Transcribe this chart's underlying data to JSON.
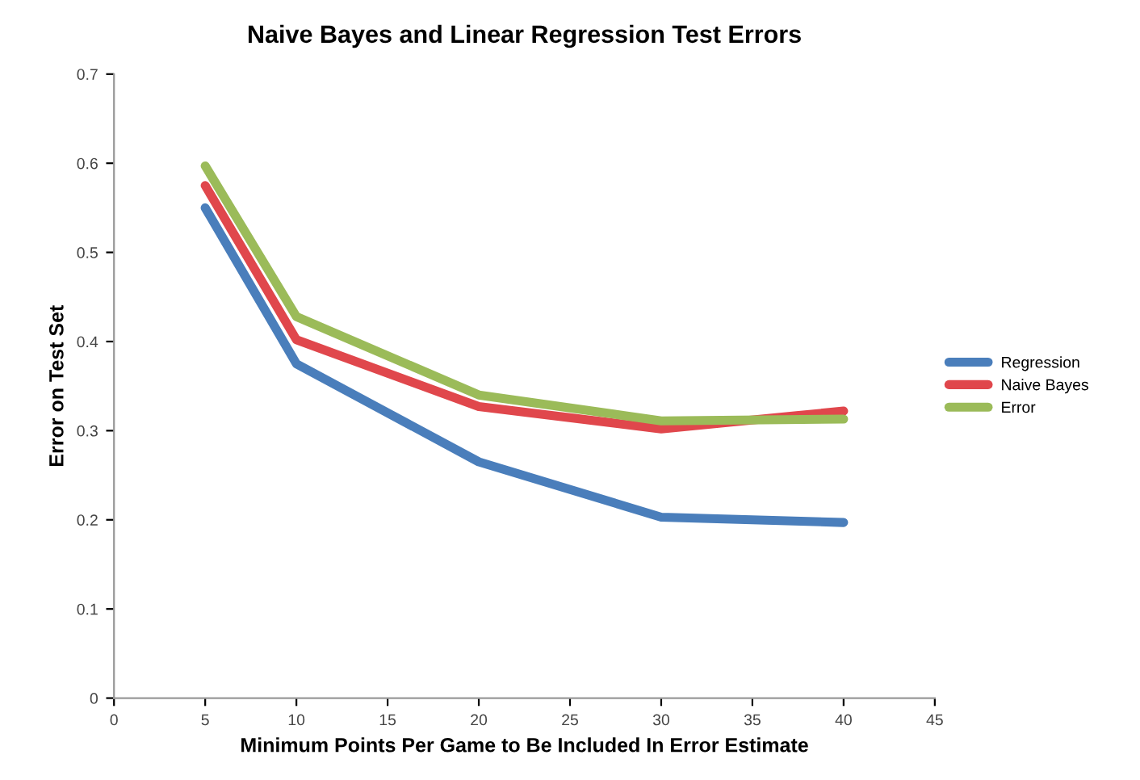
{
  "chart_data": {
    "type": "line",
    "title": "Naive Bayes and Linear Regression Test Errors",
    "xlabel": "Minimum Points Per Game to Be Included In Error Estimate",
    "ylabel": "Error on Test Set",
    "x": [
      5,
      10,
      20,
      30,
      40
    ],
    "series": [
      {
        "name": "Regression",
        "color": "#4a7ebb",
        "values": [
          0.55,
          0.375,
          0.265,
          0.203,
          0.197
        ]
      },
      {
        "name": "Naive Bayes",
        "color": "#e0474c",
        "values": [
          0.575,
          0.402,
          0.327,
          0.302,
          0.322
        ]
      },
      {
        "name": "Error",
        "color": "#9bbb59",
        "values": [
          0.597,
          0.428,
          0.34,
          0.311,
          0.313
        ]
      }
    ],
    "xlim": [
      0,
      45
    ],
    "xticks": [
      0,
      5,
      10,
      15,
      20,
      25,
      30,
      35,
      40,
      45
    ],
    "ylim": [
      0,
      0.7
    ],
    "yticks": [
      0,
      0.1,
      0.2,
      0.3,
      0.4,
      0.5,
      0.6,
      0.7
    ],
    "legend": "right",
    "grid": false,
    "marker": "none",
    "line_style": "solid"
  }
}
